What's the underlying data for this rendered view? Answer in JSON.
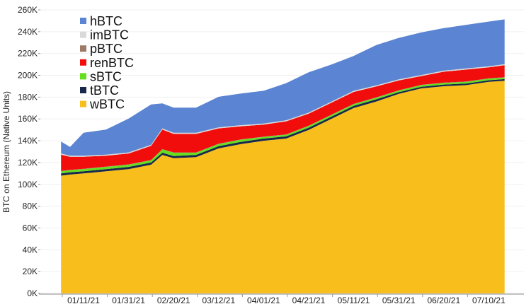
{
  "chart_data": {
    "type": "area",
    "stacked": true,
    "title": "",
    "xlabel": "",
    "ylabel": "BTC on Ethereum (Native Units)",
    "ylim": [
      0,
      260000
    ],
    "yticks": [
      "0K",
      "20K",
      "40K",
      "60K",
      "80K",
      "100K",
      "120K",
      "140K",
      "160K",
      "180K",
      "200K",
      "220K",
      "240K",
      "260K"
    ],
    "xticks": [
      "01/11/21",
      "01/31/21",
      "02/20/21",
      "03/12/21",
      "04/01/21",
      "04/21/21",
      "05/11/21",
      "05/31/21",
      "06/20/21",
      "07/10/21"
    ],
    "legend_position": "top-left",
    "x": [
      "01/01/21",
      "01/05/21",
      "01/11/21",
      "01/21/21",
      "01/31/21",
      "02/10/21",
      "02/15/21",
      "02/20/21",
      "03/02/21",
      "03/12/21",
      "03/22/21",
      "04/01/21",
      "04/11/21",
      "04/21/21",
      "05/01/21",
      "05/11/21",
      "05/21/21",
      "05/31/21",
      "06/10/21",
      "06/20/21",
      "06/30/21",
      "07/10/21",
      "07/17/21"
    ],
    "series": [
      {
        "name": "wBTC",
        "color": "#f8bf1c",
        "values": [
          108000,
          109000,
          110000,
          112000,
          114000,
          118000,
          127000,
          124000,
          125000,
          133000,
          137000,
          140000,
          142000,
          150000,
          160000,
          170000,
          176000,
          183000,
          188000,
          190000,
          191000,
          194000,
          195000
        ]
      },
      {
        "name": "tBTC",
        "color": "#17284a",
        "values": [
          2000,
          2000,
          2000,
          2000,
          2000,
          2000,
          2000,
          2000,
          2000,
          2000,
          2000,
          2000,
          2000,
          2000,
          2000,
          2000,
          2000,
          1500,
          1500,
          1500,
          1500,
          1500,
          1500
        ]
      },
      {
        "name": "sBTC",
        "color": "#66dd1d",
        "values": [
          2000,
          2000,
          2000,
          2000,
          2000,
          2000,
          3000,
          3000,
          2000,
          2000,
          2000,
          1500,
          1500,
          1500,
          1500,
          1500,
          1500,
          1500,
          1500,
          1500,
          1500,
          1500,
          1500
        ]
      },
      {
        "name": "pBTC",
        "color": "#9c7a64",
        "values": [
          300,
          300,
          300,
          300,
          300,
          300,
          300,
          300,
          300,
          300,
          300,
          300,
          300,
          300,
          300,
          300,
          300,
          300,
          300,
          300,
          300,
          300,
          300
        ]
      },
      {
        "name": "renBTC",
        "color": "#f20d0d",
        "values": [
          15000,
          12000,
          11000,
          10000,
          10000,
          13000,
          18000,
          17000,
          17000,
          14000,
          12000,
          11000,
          12000,
          11000,
          11000,
          11000,
          10000,
          9000,
          8000,
          10000,
          11000,
          10000,
          11000
        ]
      },
      {
        "name": "imBTC",
        "color": "#d9d9d9",
        "values": [
          1000,
          1000,
          1000,
          1000,
          1000,
          1000,
          1000,
          1000,
          1000,
          1000,
          1000,
          1000,
          1000,
          1000,
          1000,
          1000,
          1000,
          1000,
          1000,
          1000,
          1000,
          1000,
          1000
        ]
      },
      {
        "name": "hBTC",
        "color": "#5b84d2",
        "values": [
          11000,
          8000,
          21000,
          23000,
          31000,
          37000,
          23000,
          23000,
          23000,
          28000,
          29000,
          30000,
          34000,
          37000,
          34000,
          32000,
          37000,
          38000,
          39000,
          39000,
          40000,
          41000,
          41000
        ]
      }
    ],
    "legend_order": [
      "hBTC",
      "imBTC",
      "pBTC",
      "renBTC",
      "sBTC",
      "tBTC",
      "wBTC"
    ],
    "grid": true
  }
}
